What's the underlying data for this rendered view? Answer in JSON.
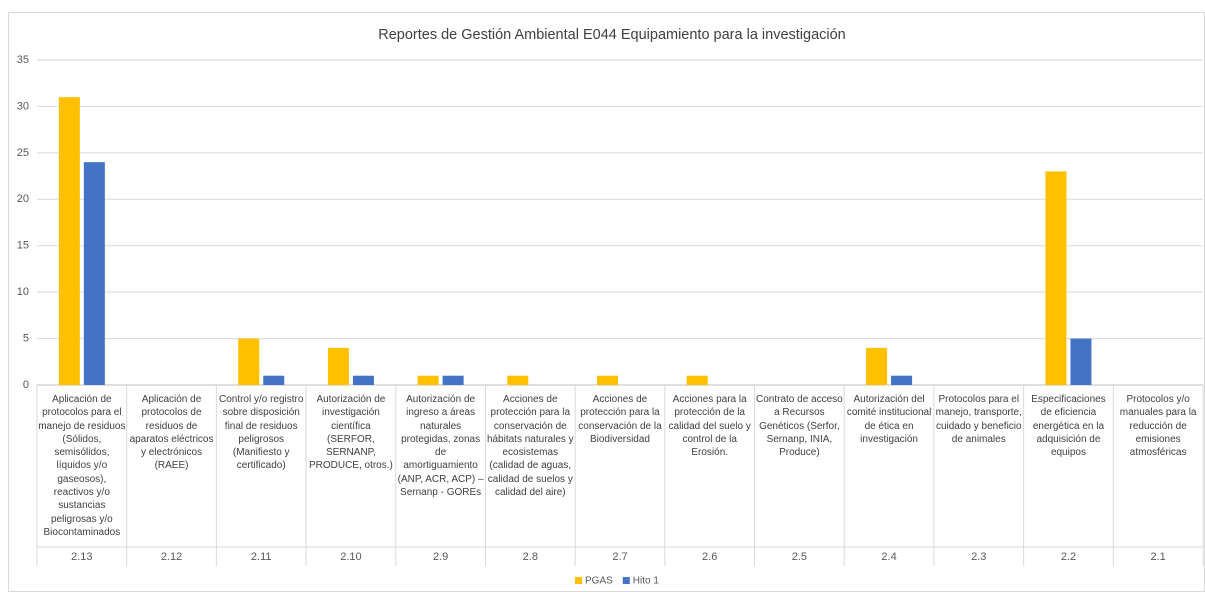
{
  "chart_data": {
    "type": "bar",
    "title": "Reportes de Gestión Ambiental E044 Equipamiento para la investigación",
    "categories": [
      "2.13",
      "2.12",
      "2.11",
      "2.10",
      "2.9",
      "2.8",
      "2.7",
      "2.6",
      "2.5",
      "2.4",
      "2.3",
      "2.2",
      "2.1"
    ],
    "category_labels": [
      "Aplicación de protocolos para el manejo de residuos (Sólidos, semisólidos, líquidos y/o gaseosos), reactivos y/o sustancias peligrosas y/o Biocontaminados",
      "Aplicación de protocolos de residuos de aparatos eléctricos y electrónicos (RAEE)",
      "Control y/o registro sobre disposición final de residuos peligrosos (Manifiesto y certificado)",
      "Autorización de investigación científica (SERFOR, SERNANP, PRODUCE, otros.)",
      "Autorización de ingreso a áreas naturales protegidas, zonas de amortiguamiento (ANP, ACR, ACP) – Sernanp - GOREs",
      "Acciones de protección para la conservación de hábitats naturales y ecosistemas (calidad de aguas, calidad de suelos y calidad del aire)",
      "Acciones de protección para la conservación de la Biodiversidad",
      "Acciones para la protección de la calidad del suelo y control de la Erosión.",
      "Contrato de acceso a Recursos Genéticos (Serfor, Sernanp, INIA, Produce)",
      "Autorización del comité institucional de ética en investigación",
      "Protocolos para el manejo, transporte, cuidado y beneficio de animales",
      "Especificaciones de eficiencia energética en la adquisición de equipos",
      "Protocolos y/o manuales para la reducción de emisiones atmosféricas"
    ],
    "series": [
      {
        "name": "PGAS",
        "color": "#ffc000",
        "values": [
          31,
          0,
          5,
          4,
          1,
          1,
          1,
          1,
          0,
          4,
          0,
          23,
          0
        ]
      },
      {
        "name": "Hito 1",
        "color": "#4472c4",
        "values": [
          24,
          0,
          1,
          1,
          1,
          0,
          0,
          0,
          0,
          1,
          0,
          5,
          0
        ]
      }
    ],
    "ylim": [
      0,
      35
    ],
    "yticks": [
      0,
      5,
      10,
      15,
      20,
      25,
      30,
      35
    ],
    "grid": true,
    "legend": "bottom"
  }
}
